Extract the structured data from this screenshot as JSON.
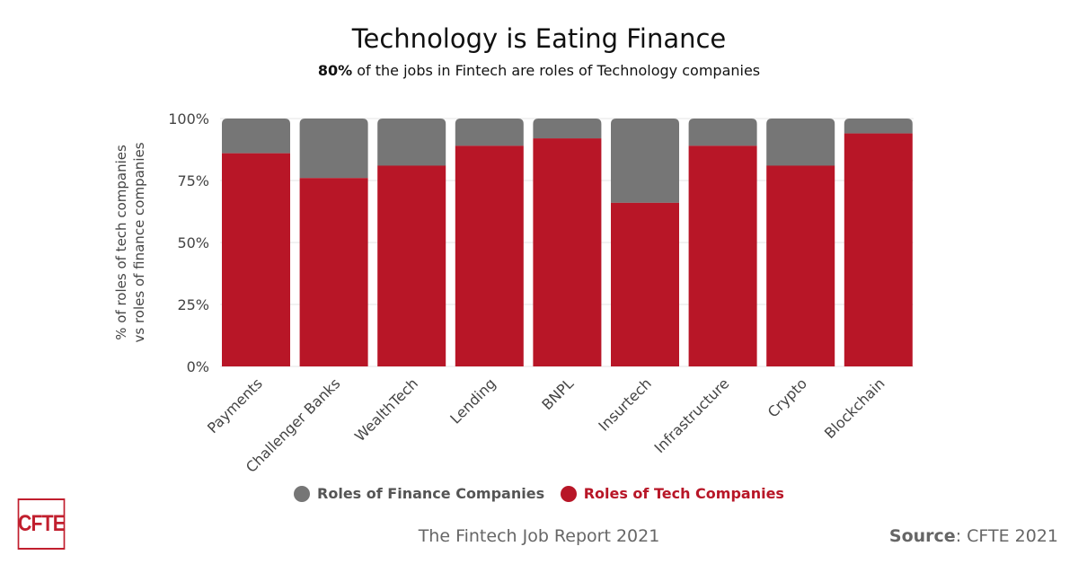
{
  "chart_data": {
    "type": "bar",
    "stacked": true,
    "title": "Technology is Eating Finance",
    "subtitle_bold": "80%",
    "subtitle_rest": " of the jobs in Fintech are roles of Technology companies",
    "ylabel_line1": "% of roles of tech companies",
    "ylabel_line2": "vs roles of finance companies",
    "ylim": [
      0,
      100
    ],
    "yticks": [
      "0%",
      "25%",
      "50%",
      "75%",
      "100%"
    ],
    "grid": true,
    "legend_position": "bottom",
    "categories": [
      "Payments",
      "Challenger Banks",
      "WealthTech",
      "Lending",
      "BNPL",
      "Insurtech",
      "Infrastructure",
      "Crypto",
      "Blockchain"
    ],
    "series": [
      {
        "name": "Roles of Tech Companies",
        "color": "#b81627",
        "values": [
          86,
          76,
          81,
          89,
          92,
          66,
          89,
          81,
          94
        ]
      },
      {
        "name": "Roles of Finance Companies",
        "color": "#767676",
        "values": [
          14,
          24,
          19,
          11,
          8,
          34,
          11,
          19,
          6
        ]
      }
    ]
  },
  "logo": "CFTE",
  "footer": {
    "report": "The Fintech Job Report 2021",
    "source_label": "Source",
    "source_value": ": CFTE 2021"
  }
}
